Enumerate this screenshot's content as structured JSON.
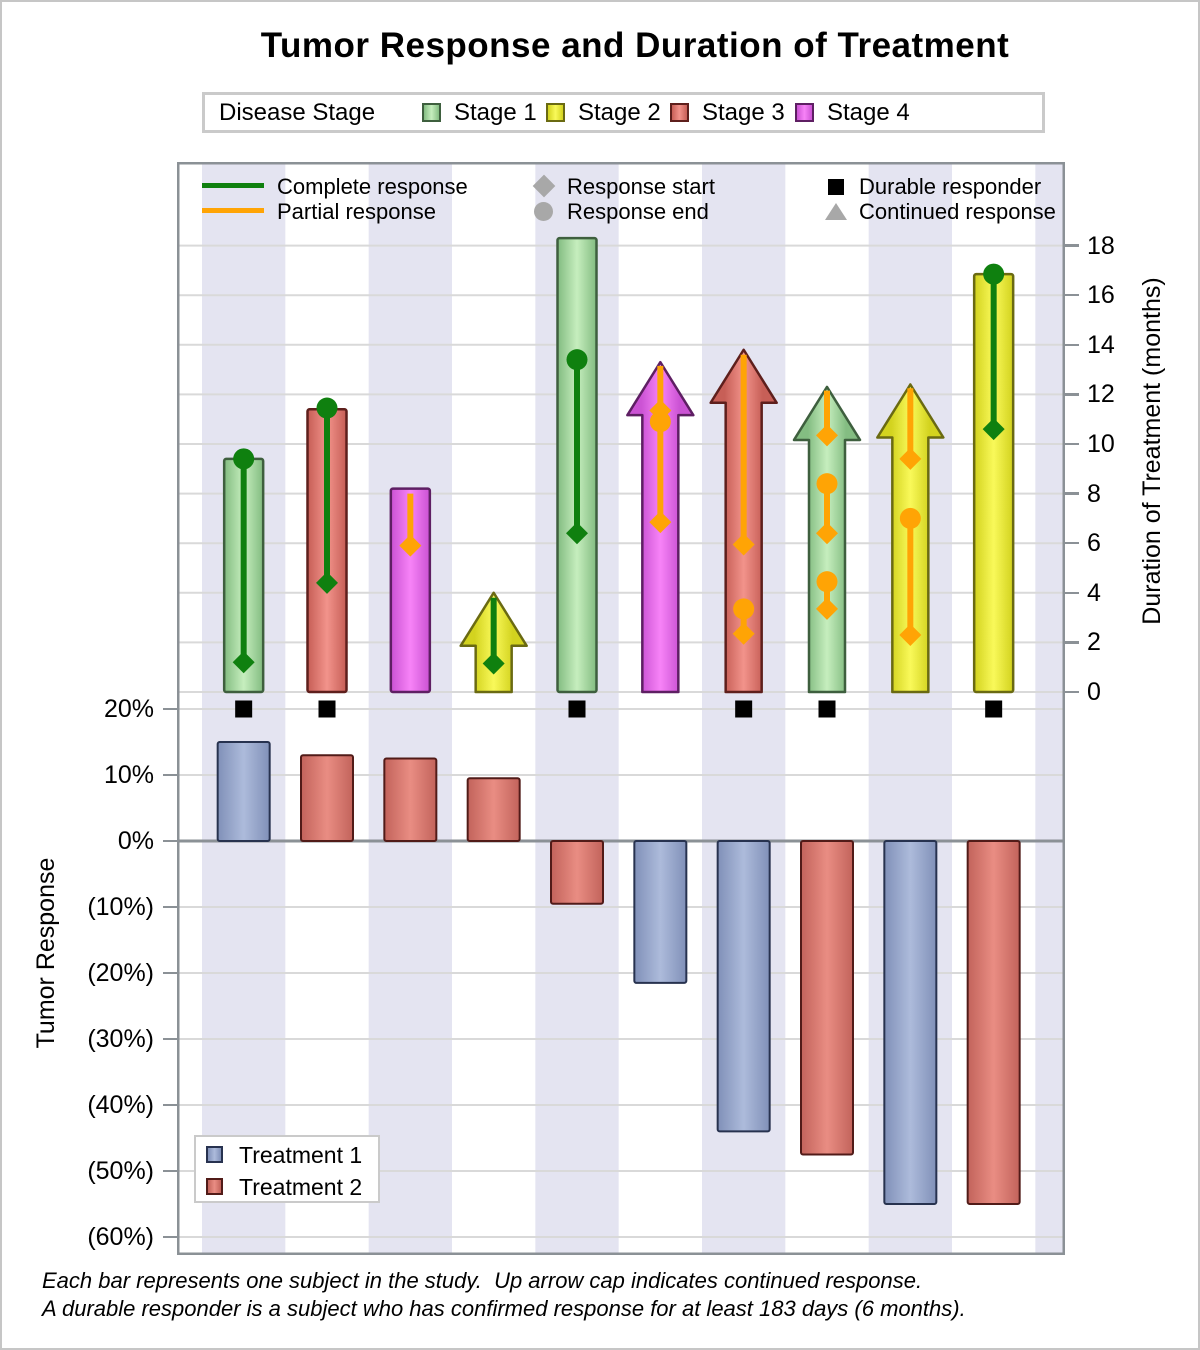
{
  "title": "Tumor Response and Duration of Treatment",
  "stage_legend": {
    "label": "Disease Stage",
    "items": [
      {
        "label": "Stage 1",
        "color_key": "s1"
      },
      {
        "label": "Stage 2",
        "color_key": "s2"
      },
      {
        "label": "Stage 3",
        "color_key": "s3"
      },
      {
        "label": "Stage 4",
        "color_key": "s4"
      }
    ]
  },
  "inner_legend": {
    "complete": "Complete response",
    "partial": "Partial response",
    "start": "Response start",
    "end": "Response end",
    "durable": "Durable responder",
    "continued": "Continued response"
  },
  "treatment_legend": {
    "items": [
      {
        "label": "Treatment 1",
        "color_key": "t1"
      },
      {
        "label": "Treatment 2",
        "color_key": "t2"
      }
    ]
  },
  "axes": {
    "duration": {
      "title": "Duration of Treatment (months)",
      "min": 0,
      "max": 18,
      "ticks": [
        {
          "v": 0,
          "label": "0"
        },
        {
          "v": 2,
          "label": "2"
        },
        {
          "v": 4,
          "label": "4"
        },
        {
          "v": 6,
          "label": "6"
        },
        {
          "v": 8,
          "label": "8"
        },
        {
          "v": 10,
          "label": "10"
        },
        {
          "v": 12,
          "label": "12"
        },
        {
          "v": 14,
          "label": "14"
        },
        {
          "v": 16,
          "label": "16"
        },
        {
          "v": 18,
          "label": "18"
        }
      ]
    },
    "tumor": {
      "title": "Tumor Response",
      "min": -60,
      "max": 20,
      "ticks": [
        {
          "v": 20,
          "label": "20%"
        },
        {
          "v": 10,
          "label": "10%"
        },
        {
          "v": 0,
          "label": "0%"
        },
        {
          "v": -10,
          "label": "(10%)"
        },
        {
          "v": -20,
          "label": "(20%)"
        },
        {
          "v": -30,
          "label": "(30%)"
        },
        {
          "v": -40,
          "label": "(40%)"
        },
        {
          "v": -50,
          "label": "(50%)"
        },
        {
          "v": -60,
          "label": "(60%)"
        }
      ]
    }
  },
  "footnotes": [
    "Each bar represents one subject in the study.  Up arrow cap indicates continued response.",
    "A durable responder is a subject who has confirmed response for at least 183 days (6 months)."
  ],
  "colors": {
    "stage_fills": {
      "s1": {
        "edge": "#84bd82",
        "mid": "#c6eebe",
        "border": "#3e5f3e"
      },
      "s2": {
        "edge": "#d3d31f",
        "mid": "#f9f95a",
        "border": "#6a6a12"
      },
      "s3": {
        "edge": "#c75f57",
        "mid": "#f2938b",
        "border": "#5e1f1c"
      },
      "s4": {
        "edge": "#cb53d4",
        "mid": "#f783f7",
        "border": "#5e1f63"
      }
    },
    "treatment_fills": {
      "t1": {
        "edge": "#8090b8",
        "mid": "#adbbdb",
        "border": "#27324f"
      },
      "t2": {
        "edge": "#c2635b",
        "mid": "#e98d83",
        "border": "#511b18"
      }
    },
    "complete_response": "#0f800f",
    "partial_response": "#ffa405",
    "durable_marker": "#000000",
    "legend_gray": "#a8a8a8",
    "band": "#e4e4f1",
    "grid": "#d9d9d9",
    "axis_line": "#8b9196"
  },
  "chart_data": {
    "type": "bar",
    "subtype": "swimmer-plus-waterfall",
    "duration_units": "months",
    "tumor_units": "percent",
    "subjects": [
      {
        "id": 1,
        "stage": "s1",
        "treatment": "t1",
        "duration": 9.4,
        "continued": false,
        "durable": true,
        "response": "complete",
        "episodes": [
          {
            "start": 1.2,
            "end": 9.4,
            "open": false
          }
        ],
        "tumor_pct": 15
      },
      {
        "id": 2,
        "stage": "s3",
        "treatment": "t2",
        "duration": 11.4,
        "continued": false,
        "durable": true,
        "response": "complete",
        "episodes": [
          {
            "start": 4.4,
            "end": 11.45,
            "open": false
          }
        ],
        "tumor_pct": 13
      },
      {
        "id": 3,
        "stage": "s4",
        "treatment": "t2",
        "duration": 8.2,
        "continued": false,
        "durable": false,
        "response": "partial",
        "episodes": [
          {
            "start": 5.9,
            "end": 8.0,
            "open": true
          }
        ],
        "tumor_pct": 12.5
      },
      {
        "id": 4,
        "stage": "s2",
        "treatment": "t2",
        "duration": 4.0,
        "continued": true,
        "durable": false,
        "response": "complete",
        "episodes": [
          {
            "start": 1.15,
            "end": 3.8,
            "open": true
          }
        ],
        "tumor_pct": 9.5
      },
      {
        "id": 5,
        "stage": "s1",
        "treatment": "t2",
        "duration": 18.3,
        "continued": false,
        "durable": true,
        "response": "complete",
        "episodes": [
          {
            "start": 6.4,
            "end": 13.4,
            "open": false
          }
        ],
        "tumor_pct": -9.5
      },
      {
        "id": 6,
        "stage": "s4",
        "treatment": "t1",
        "duration": 13.3,
        "continued": true,
        "durable": false,
        "response": "partial",
        "episodes": [
          {
            "start": 6.85,
            "end": 10.9,
            "open": false
          },
          {
            "start": 11.35,
            "end": 13.15,
            "open": true
          }
        ],
        "tumor_pct": -21.5
      },
      {
        "id": 7,
        "stage": "s3",
        "treatment": "t1",
        "duration": 13.8,
        "continued": true,
        "durable": true,
        "response": "partial",
        "episodes": [
          {
            "start": 2.35,
            "end": 3.35,
            "open": false
          },
          {
            "start": 5.95,
            "end": 13.6,
            "open": true
          }
        ],
        "tumor_pct": -44
      },
      {
        "id": 8,
        "stage": "s1",
        "treatment": "t2",
        "duration": 12.3,
        "continued": true,
        "durable": true,
        "response": "partial",
        "episodes": [
          {
            "start": 3.35,
            "end": 4.45,
            "open": false
          },
          {
            "start": 6.4,
            "end": 8.4,
            "open": false
          },
          {
            "start": 10.35,
            "end": 12.15,
            "open": true
          }
        ],
        "tumor_pct": -47.5
      },
      {
        "id": 9,
        "stage": "s2",
        "treatment": "t1",
        "duration": 12.4,
        "continued": true,
        "durable": false,
        "response": "partial",
        "episodes": [
          {
            "start": 2.3,
            "end": 7.0,
            "open": false
          },
          {
            "start": 9.4,
            "end": 12.25,
            "open": true
          }
        ],
        "tumor_pct": -55
      },
      {
        "id": 10,
        "stage": "s2",
        "treatment": "t2",
        "duration": 16.85,
        "continued": false,
        "durable": true,
        "response": "complete",
        "episodes": [
          {
            "start": 10.6,
            "end": 16.85,
            "open": false
          }
        ],
        "tumor_pct": -55
      }
    ]
  }
}
